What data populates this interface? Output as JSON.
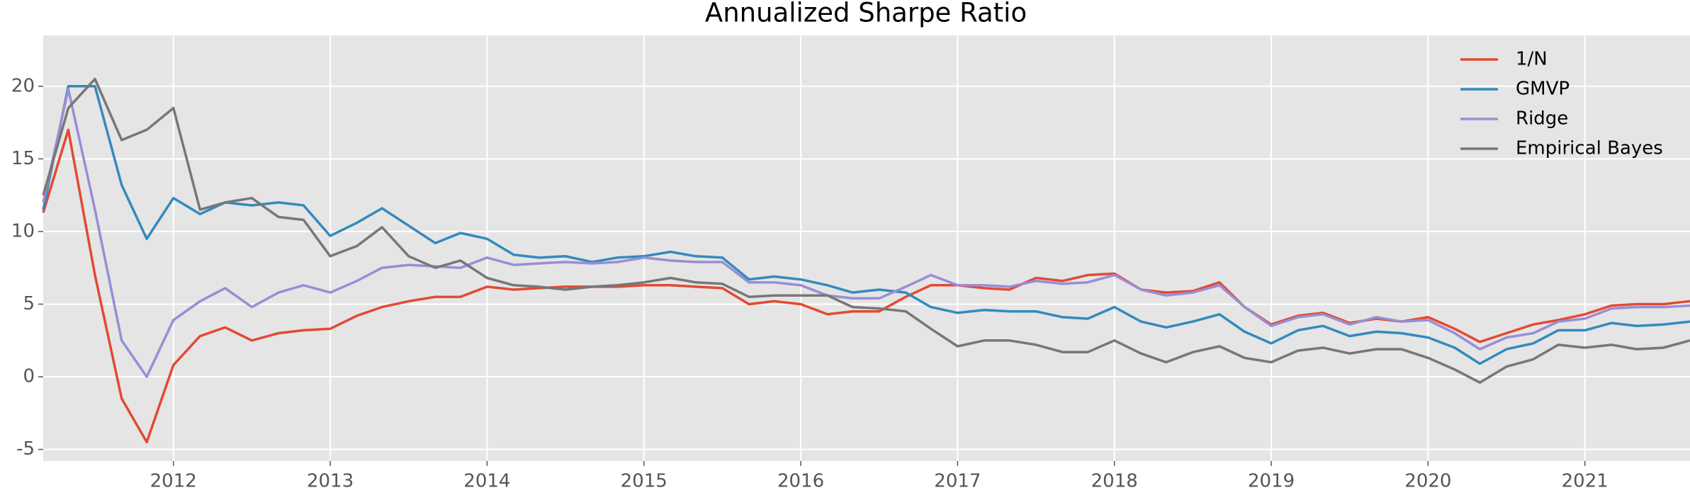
{
  "chart_data": {
    "type": "line",
    "title": "Annualized Sharpe Ratio",
    "x": [
      2011.17,
      2011.33,
      2011.5,
      2011.67,
      2011.83,
      2012.0,
      2012.17,
      2012.33,
      2012.5,
      2012.67,
      2012.83,
      2013.0,
      2013.17,
      2013.33,
      2013.5,
      2013.67,
      2013.83,
      2014.0,
      2014.17,
      2014.33,
      2014.5,
      2014.67,
      2014.83,
      2015.0,
      2015.17,
      2015.33,
      2015.5,
      2015.67,
      2015.83,
      2016.0,
      2016.17,
      2016.33,
      2016.5,
      2016.67,
      2016.83,
      2017.0,
      2017.17,
      2017.33,
      2017.5,
      2017.67,
      2017.83,
      2018.0,
      2018.17,
      2018.33,
      2018.5,
      2018.67,
      2018.83,
      2019.0,
      2019.17,
      2019.33,
      2019.5,
      2019.67,
      2019.83,
      2020.0,
      2020.17,
      2020.33,
      2020.5,
      2020.67,
      2020.83,
      2021.0,
      2021.17,
      2021.33,
      2021.5,
      2021.67
    ],
    "series": [
      {
        "name": "1/N",
        "color": "#E24A33",
        "values": [
          11.3,
          17,
          7,
          -1.5,
          -4.5,
          0.8,
          2.8,
          3.4,
          2.5,
          3.0,
          3.2,
          3.3,
          4.2,
          4.8,
          5.2,
          5.5,
          5.5,
          6.2,
          6.0,
          6.1,
          6.2,
          6.2,
          6.2,
          6.3,
          6.3,
          6.2,
          6.1,
          5.0,
          5.2,
          5.0,
          4.3,
          4.5,
          4.5,
          5.5,
          6.3,
          6.3,
          6.1,
          6.0,
          6.8,
          6.6,
          7.0,
          7.1,
          6.0,
          5.8,
          5.9,
          6.5,
          4.8,
          3.6,
          4.2,
          4.4,
          3.7,
          4.0,
          3.8,
          4.1,
          3.3,
          2.4,
          3.0,
          3.6,
          3.9,
          4.3,
          4.9,
          5.0,
          5.0,
          5.2
        ]
      },
      {
        "name": "GMVP",
        "color": "#348ABD",
        "values": [
          11.5,
          20,
          20,
          13.2,
          9.5,
          12.3,
          11.2,
          12.0,
          11.8,
          12.0,
          11.8,
          9.7,
          10.6,
          11.6,
          10.4,
          9.2,
          9.9,
          9.5,
          8.4,
          8.2,
          8.3,
          7.9,
          8.2,
          8.3,
          8.6,
          8.3,
          8.2,
          6.7,
          6.9,
          6.7,
          6.3,
          5.8,
          6.0,
          5.8,
          4.8,
          4.4,
          4.6,
          4.5,
          4.5,
          4.1,
          4.0,
          4.8,
          3.8,
          3.4,
          3.8,
          4.3,
          3.1,
          2.3,
          3.2,
          3.5,
          2.8,
          3.1,
          3.0,
          2.7,
          2.0,
          0.9,
          1.9,
          2.3,
          3.2,
          3.2,
          3.7,
          3.5,
          3.6,
          3.8
        ]
      },
      {
        "name": "Ridge",
        "color": "#988ED5",
        "values": [
          12,
          19.8,
          11.5,
          2.5,
          0,
          3.9,
          5.2,
          6.1,
          4.8,
          5.8,
          6.3,
          5.8,
          6.6,
          7.5,
          7.7,
          7.6,
          7.5,
          8.2,
          7.7,
          7.8,
          7.9,
          7.8,
          7.9,
          8.2,
          8.0,
          7.9,
          7.9,
          6.5,
          6.5,
          6.3,
          5.6,
          5.4,
          5.4,
          6.2,
          7.0,
          6.3,
          6.3,
          6.2,
          6.6,
          6.4,
          6.5,
          7.0,
          6.0,
          5.6,
          5.8,
          6.3,
          4.8,
          3.5,
          4.1,
          4.3,
          3.6,
          4.1,
          3.8,
          3.9,
          3.0,
          1.9,
          2.7,
          3.0,
          3.8,
          4.0,
          4.7,
          4.8,
          4.8,
          4.9
        ]
      },
      {
        "name": "Empirical Bayes",
        "color": "#777777",
        "values": [
          12.5,
          18.5,
          20.5,
          16.3,
          17.0,
          18.5,
          11.5,
          12.0,
          12.3,
          11.0,
          10.8,
          8.3,
          9.0,
          10.3,
          8.3,
          7.5,
          8.0,
          6.8,
          6.3,
          6.2,
          6.0,
          6.2,
          6.3,
          6.5,
          6.8,
          6.5,
          6.4,
          5.5,
          5.6,
          5.6,
          5.6,
          4.8,
          4.7,
          4.5,
          3.3,
          2.1,
          2.5,
          2.5,
          2.2,
          1.7,
          1.7,
          2.5,
          1.6,
          1.0,
          1.7,
          2.1,
          1.3,
          1.0,
          1.8,
          2.0,
          1.6,
          1.9,
          1.9,
          1.3,
          0.5,
          -0.4,
          0.7,
          1.2,
          2.2,
          2.0,
          2.2,
          1.9,
          2.0,
          2.5
        ]
      }
    ],
    "xlim": [
      2011.17,
      2021.67
    ],
    "xticks": [
      2012,
      2013,
      2014,
      2015,
      2016,
      2017,
      2018,
      2019,
      2020,
      2021
    ],
    "ylim": [
      -5.8,
      23.5
    ],
    "yticks": [
      -5,
      0,
      5,
      10,
      15,
      20
    ],
    "grid": true,
    "legend": "upper right"
  }
}
